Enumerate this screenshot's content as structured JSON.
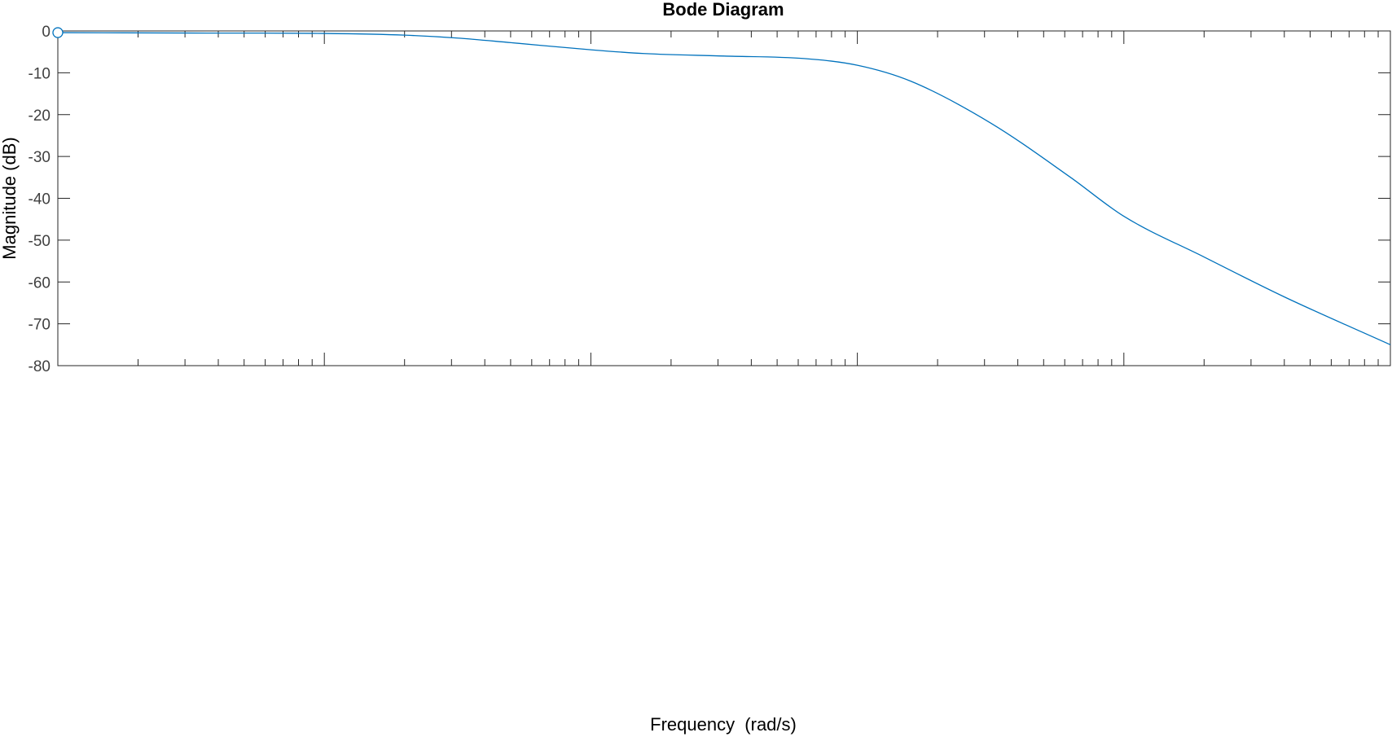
{
  "chart_data": {
    "type": "line",
    "title": "Bode Diagram",
    "xlabel": "Frequency  (rad/s)",
    "ylabel": "Magnitude (dB)",
    "x_scale": "log",
    "ylim": [
      -80,
      0
    ],
    "y_ticks": [
      0,
      -10,
      -20,
      -30,
      -40,
      -50,
      -60,
      -70,
      -80
    ],
    "y_tick_labels": [
      "0",
      "-10",
      "-20",
      "-30",
      "-40",
      "-50",
      "-60",
      "-70",
      "-80"
    ],
    "grid": false,
    "colors": {
      "line": "#0072BD",
      "axes": "#262626",
      "tick_text": "#404040"
    },
    "series": [
      {
        "x_decades": [
          0,
          0.5,
          1.0,
          1.3,
          1.5,
          1.7,
          2.0,
          2.2,
          2.5,
          2.8,
          3.0,
          3.2,
          3.5,
          3.8,
          4.0,
          4.3,
          4.6,
          5.0
        ],
        "values": [
          -0.4,
          -0.5,
          -0.6,
          -1.0,
          -1.7,
          -2.8,
          -4.5,
          -5.4,
          -6.0,
          -6.6,
          -8.2,
          -12.0,
          -22.0,
          -35.0,
          -44.3,
          -54.0,
          -63.5,
          -75.0
        ]
      }
    ],
    "marker": {
      "x_decade": 0,
      "value": -0.4,
      "shape": "circle"
    }
  }
}
